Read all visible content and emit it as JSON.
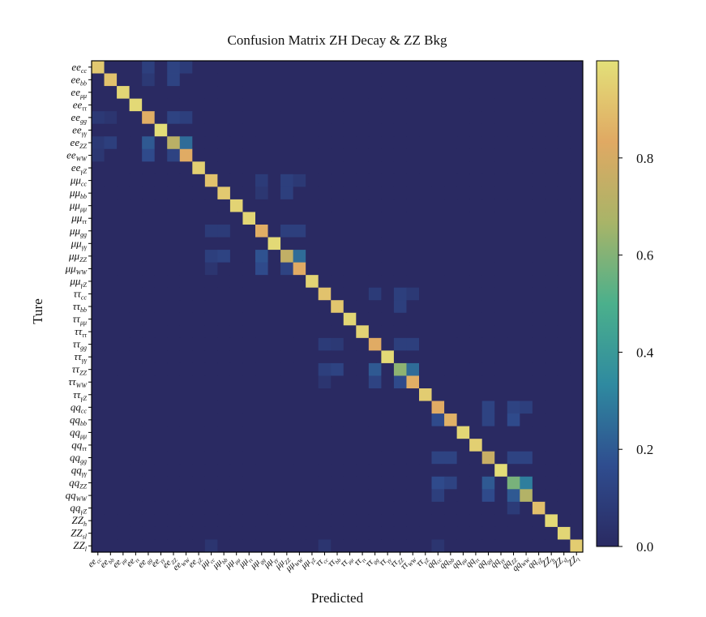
{
  "chart_data": {
    "type": "heatmap",
    "title": "Confusion Matrix ZH Decay & ZZ Bkg",
    "xlabel": "Predicted",
    "ylabel": "Ture",
    "labels": [
      {
        "base": "ee",
        "sub": "cc"
      },
      {
        "base": "ee",
        "sub": "bb"
      },
      {
        "base": "ee",
        "sub": "μμ"
      },
      {
        "base": "ee",
        "sub": "ττ"
      },
      {
        "base": "ee",
        "sub": "gg"
      },
      {
        "base": "ee",
        "sub": "γγ"
      },
      {
        "base": "ee",
        "sub": "ZZ"
      },
      {
        "base": "ee",
        "sub": "WW"
      },
      {
        "base": "ee",
        "sub": "γZ"
      },
      {
        "base": "μμ",
        "sub": "cc"
      },
      {
        "base": "μμ",
        "sub": "bb"
      },
      {
        "base": "μμ",
        "sub": "μμ"
      },
      {
        "base": "μμ",
        "sub": "ττ"
      },
      {
        "base": "μμ",
        "sub": "gg"
      },
      {
        "base": "μμ",
        "sub": "γγ"
      },
      {
        "base": "μμ",
        "sub": "ZZ"
      },
      {
        "base": "μμ",
        "sub": "WW"
      },
      {
        "base": "μμ",
        "sub": "γZ"
      },
      {
        "base": "ττ",
        "sub": "cc"
      },
      {
        "base": "ττ",
        "sub": "bb"
      },
      {
        "base": "ττ",
        "sub": "μμ"
      },
      {
        "base": "ττ",
        "sub": "ττ"
      },
      {
        "base": "ττ",
        "sub": "gg"
      },
      {
        "base": "ττ",
        "sub": "γγ"
      },
      {
        "base": "ττ",
        "sub": "ZZ"
      },
      {
        "base": "ττ",
        "sub": "WW"
      },
      {
        "base": "ττ",
        "sub": "γZ"
      },
      {
        "base": "qq",
        "sub": "cc"
      },
      {
        "base": "qq",
        "sub": "bb"
      },
      {
        "base": "qq",
        "sub": "μμ"
      },
      {
        "base": "qq",
        "sub": "ττ"
      },
      {
        "base": "qq",
        "sub": "gg"
      },
      {
        "base": "qq",
        "sub": "γγ"
      },
      {
        "base": "qq",
        "sub": "ZZ"
      },
      {
        "base": "qq",
        "sub": "WW"
      },
      {
        "base": "qq",
        "sub": "γZ"
      },
      {
        "base": "ZZ",
        "sub": "h"
      },
      {
        "base": "ZZ",
        "sub": "sl"
      },
      {
        "base": "ZZ",
        "sub": "l"
      }
    ],
    "diagonal": [
      0.93,
      0.91,
      0.97,
      0.98,
      0.85,
      0.99,
      0.72,
      0.84,
      0.95,
      0.91,
      0.93,
      0.96,
      0.97,
      0.85,
      0.98,
      0.74,
      0.84,
      0.96,
      0.91,
      0.92,
      0.97,
      0.96,
      0.84,
      0.98,
      0.62,
      0.85,
      0.94,
      0.84,
      0.86,
      0.97,
      0.95,
      0.76,
      0.99,
      0.58,
      0.7,
      0.9,
      0.98,
      0.97,
      0.94
    ],
    "off_diagonal": [
      {
        "row": 0,
        "col": 4,
        "value": 0.1
      },
      {
        "row": 0,
        "col": 6,
        "value": 0.12
      },
      {
        "row": 0,
        "col": 7,
        "value": 0.08
      },
      {
        "row": 1,
        "col": 4,
        "value": 0.07
      },
      {
        "row": 1,
        "col": 6,
        "value": 0.12
      },
      {
        "row": 4,
        "col": 0,
        "value": 0.07
      },
      {
        "row": 4,
        "col": 1,
        "value": 0.05
      },
      {
        "row": 4,
        "col": 6,
        "value": 0.12
      },
      {
        "row": 4,
        "col": 7,
        "value": 0.1
      },
      {
        "row": 6,
        "col": 0,
        "value": 0.07
      },
      {
        "row": 6,
        "col": 1,
        "value": 0.1
      },
      {
        "row": 6,
        "col": 4,
        "value": 0.2
      },
      {
        "row": 6,
        "col": 7,
        "value": 0.25
      },
      {
        "row": 7,
        "col": 0,
        "value": 0.06
      },
      {
        "row": 7,
        "col": 4,
        "value": 0.15
      },
      {
        "row": 7,
        "col": 6,
        "value": 0.12
      },
      {
        "row": 9,
        "col": 13,
        "value": 0.08
      },
      {
        "row": 9,
        "col": 15,
        "value": 0.1
      },
      {
        "row": 9,
        "col": 16,
        "value": 0.07
      },
      {
        "row": 10,
        "col": 13,
        "value": 0.06
      },
      {
        "row": 10,
        "col": 15,
        "value": 0.1
      },
      {
        "row": 13,
        "col": 9,
        "value": 0.08
      },
      {
        "row": 13,
        "col": 10,
        "value": 0.08
      },
      {
        "row": 13,
        "col": 15,
        "value": 0.1
      },
      {
        "row": 13,
        "col": 16,
        "value": 0.1
      },
      {
        "row": 15,
        "col": 9,
        "value": 0.1
      },
      {
        "row": 15,
        "col": 10,
        "value": 0.12
      },
      {
        "row": 15,
        "col": 13,
        "value": 0.18
      },
      {
        "row": 15,
        "col": 16,
        "value": 0.25
      },
      {
        "row": 16,
        "col": 9,
        "value": 0.05
      },
      {
        "row": 16,
        "col": 13,
        "value": 0.15
      },
      {
        "row": 16,
        "col": 15,
        "value": 0.12
      },
      {
        "row": 18,
        "col": 22,
        "value": 0.08
      },
      {
        "row": 18,
        "col": 24,
        "value": 0.1
      },
      {
        "row": 18,
        "col": 25,
        "value": 0.07
      },
      {
        "row": 19,
        "col": 24,
        "value": 0.1
      },
      {
        "row": 22,
        "col": 18,
        "value": 0.08
      },
      {
        "row": 22,
        "col": 19,
        "value": 0.07
      },
      {
        "row": 22,
        "col": 24,
        "value": 0.1
      },
      {
        "row": 22,
        "col": 25,
        "value": 0.1
      },
      {
        "row": 24,
        "col": 18,
        "value": 0.1
      },
      {
        "row": 24,
        "col": 19,
        "value": 0.12
      },
      {
        "row": 24,
        "col": 22,
        "value": 0.2
      },
      {
        "row": 24,
        "col": 25,
        "value": 0.25
      },
      {
        "row": 25,
        "col": 18,
        "value": 0.05
      },
      {
        "row": 25,
        "col": 22,
        "value": 0.12
      },
      {
        "row": 25,
        "col": 24,
        "value": 0.15
      },
      {
        "row": 27,
        "col": 31,
        "value": 0.12
      },
      {
        "row": 27,
        "col": 33,
        "value": 0.12
      },
      {
        "row": 27,
        "col": 34,
        "value": 0.1
      },
      {
        "row": 28,
        "col": 27,
        "value": 0.15
      },
      {
        "row": 28,
        "col": 31,
        "value": 0.12
      },
      {
        "row": 28,
        "col": 33,
        "value": 0.15
      },
      {
        "row": 31,
        "col": 27,
        "value": 0.12
      },
      {
        "row": 31,
        "col": 28,
        "value": 0.12
      },
      {
        "row": 31,
        "col": 33,
        "value": 0.12
      },
      {
        "row": 31,
        "col": 34,
        "value": 0.12
      },
      {
        "row": 33,
        "col": 27,
        "value": 0.15
      },
      {
        "row": 33,
        "col": 28,
        "value": 0.12
      },
      {
        "row": 33,
        "col": 31,
        "value": 0.2
      },
      {
        "row": 33,
        "col": 34,
        "value": 0.3
      },
      {
        "row": 34,
        "col": 27,
        "value": 0.1
      },
      {
        "row": 34,
        "col": 31,
        "value": 0.15
      },
      {
        "row": 34,
        "col": 33,
        "value": 0.2
      },
      {
        "row": 35,
        "col": 33,
        "value": 0.08
      },
      {
        "row": 38,
        "col": 9,
        "value": 0.05
      },
      {
        "row": 38,
        "col": 18,
        "value": 0.05
      },
      {
        "row": 38,
        "col": 27,
        "value": 0.05
      }
    ],
    "colorbar": {
      "min": 0.0,
      "max": 1.0,
      "ticks": [
        0.0,
        0.2,
        0.4,
        0.6,
        0.8
      ],
      "tick_labels": [
        "0.0",
        "0.2",
        "0.4",
        "0.6",
        "0.8"
      ],
      "colormap": [
        "#2a2a62",
        "#2f4d8f",
        "#2f8aa0",
        "#4bb08c",
        "#a8b468",
        "#e0a963",
        "#e3e079"
      ]
    },
    "grid": false
  }
}
